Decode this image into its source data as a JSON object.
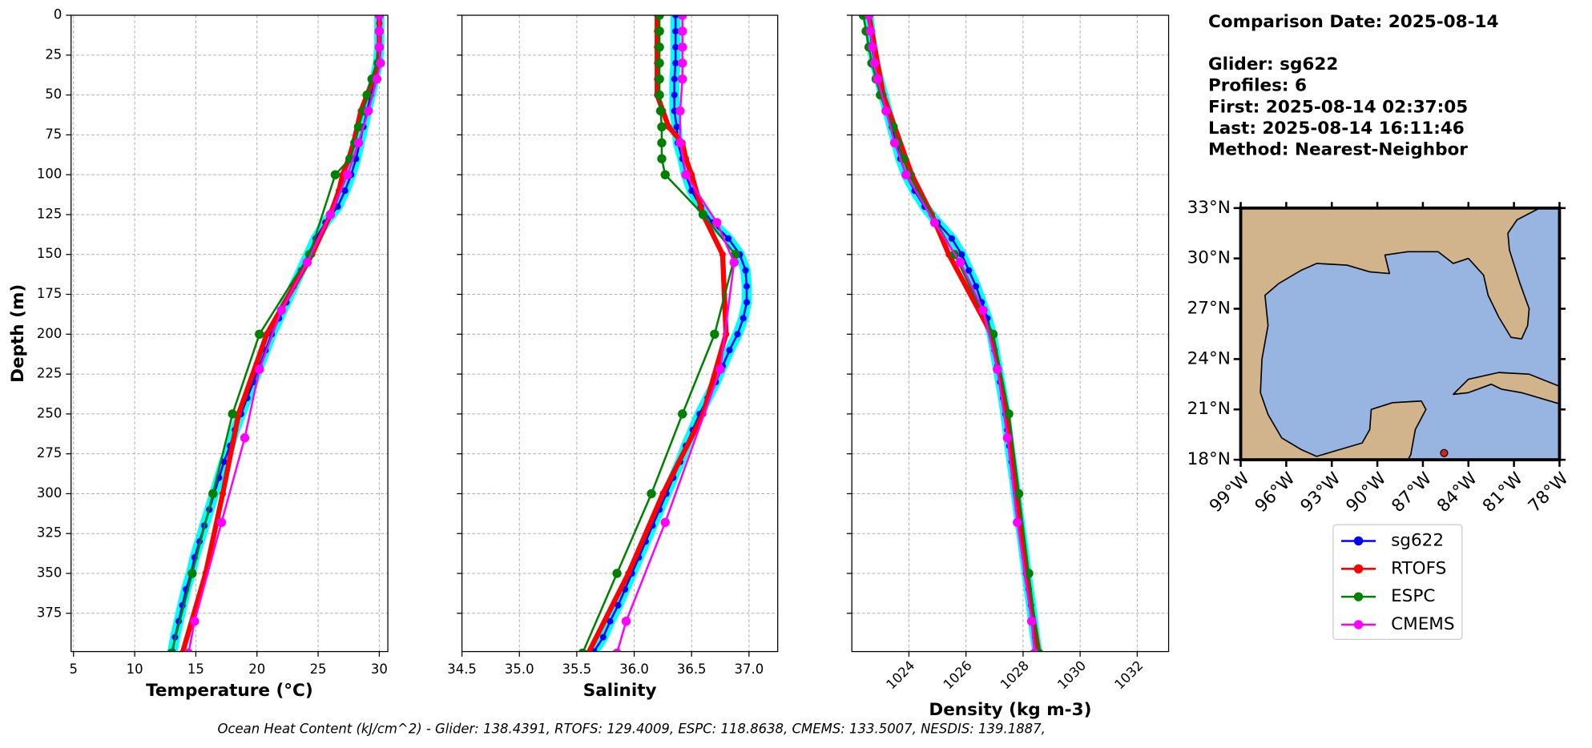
{
  "chart_data": [
    {
      "type": "profile",
      "xlabel": "Temperature (°C)",
      "ylabel": "Depth (m)",
      "xlim": [
        4.8,
        30.7
      ],
      "xticks": [
        5,
        10,
        15,
        20,
        25,
        30
      ],
      "ylim": [
        0,
        399
      ],
      "yticks": [
        0,
        25,
        50,
        75,
        100,
        125,
        150,
        175,
        200,
        225,
        250,
        275,
        300,
        325,
        350,
        375
      ],
      "grid": true,
      "series": [
        {
          "name": "sg622",
          "color": "#0000ff",
          "depth": [
            0,
            10,
            20,
            30,
            40,
            50,
            60,
            70,
            80,
            90,
            100,
            110,
            120,
            130,
            140,
            150,
            160,
            170,
            180,
            190,
            200,
            210,
            220,
            230,
            240,
            250,
            260,
            270,
            280,
            290,
            300,
            310,
            320,
            330,
            340,
            350,
            360,
            370,
            380,
            390,
            399
          ],
          "values": [
            30.0,
            30.0,
            30.0,
            29.9,
            29.6,
            29.3,
            29.0,
            28.7,
            28.4,
            28.1,
            27.7,
            27.2,
            26.6,
            25.6,
            24.8,
            24.2,
            23.6,
            23.0,
            22.4,
            21.8,
            21.2,
            20.7,
            20.2,
            19.7,
            19.2,
            18.7,
            18.2,
            17.8,
            17.3,
            16.9,
            16.5,
            16.1,
            15.7,
            15.3,
            14.9,
            14.6,
            14.2,
            13.9,
            13.6,
            13.3,
            13.1
          ]
        },
        {
          "name": "RTOFS",
          "color": "#ff0000",
          "depth": [
            0,
            5,
            10,
            20,
            30,
            40,
            50,
            60,
            70,
            80,
            90,
            100,
            110,
            125,
            150,
            200,
            250,
            300,
            350,
            400
          ],
          "values": [
            30.0,
            30.0,
            30.0,
            30.0,
            29.9,
            29.5,
            29.0,
            28.5,
            28.2,
            27.9,
            27.5,
            27.0,
            26.7,
            26.0,
            24.5,
            20.8,
            18.5,
            17.2,
            15.8,
            13.9
          ]
        },
        {
          "name": "ESPC",
          "color": "#008000",
          "depth": [
            0,
            10,
            20,
            30,
            40,
            50,
            60,
            70,
            80,
            90,
            100,
            150,
            200,
            250,
            300,
            350,
            400
          ],
          "values": [
            30.0,
            30.0,
            30.0,
            29.9,
            29.4,
            29.0,
            28.7,
            28.3,
            28.0,
            27.6,
            26.4,
            24.3,
            20.2,
            18.0,
            16.4,
            14.7,
            13.0
          ]
        },
        {
          "name": "CMEMS",
          "color": "#ff00ff",
          "depth": [
            0,
            10,
            20,
            30,
            40,
            60,
            80,
            100,
            125,
            155,
            185,
            222,
            265,
            318,
            380,
            400
          ],
          "values": [
            30.0,
            30.0,
            30.0,
            30.1,
            29.8,
            29.1,
            28.3,
            27.4,
            26.0,
            24.1,
            22.0,
            20.2,
            19.0,
            17.1,
            14.9,
            14.4
          ]
        }
      ]
    },
    {
      "type": "profile",
      "xlabel": "Salinity",
      "xlim": [
        34.5,
        37.25
      ],
      "xticks": [
        34.5,
        {
          "value": 35,
          "label": "35.0"
        },
        35.5,
        {
          "value": 36,
          "label": "36.0"
        },
        36.5,
        {
          "value": 37,
          "label": "37.0"
        }
      ],
      "ylim": [
        0,
        399
      ],
      "yticks": [
        0,
        25,
        50,
        75,
        100,
        125,
        150,
        175,
        200,
        225,
        250,
        275,
        300,
        325,
        350,
        375
      ],
      "grid": true,
      "series": [
        {
          "name": "sg622",
          "color": "#0000ff",
          "depth": [
            0,
            10,
            20,
            30,
            40,
            50,
            60,
            70,
            80,
            90,
            100,
            110,
            120,
            130,
            140,
            150,
            160,
            170,
            180,
            190,
            200,
            210,
            220,
            230,
            240,
            250,
            260,
            270,
            280,
            290,
            300,
            310,
            320,
            330,
            340,
            350,
            360,
            370,
            380,
            390,
            399
          ],
          "values": [
            36.36,
            36.36,
            36.36,
            36.36,
            36.35,
            36.35,
            36.35,
            36.37,
            36.38,
            36.42,
            36.45,
            36.5,
            36.58,
            36.68,
            36.82,
            36.92,
            36.97,
            36.98,
            36.98,
            36.95,
            36.9,
            36.83,
            36.77,
            36.71,
            36.64,
            36.57,
            36.51,
            36.45,
            36.4,
            36.34,
            36.28,
            36.22,
            36.16,
            36.1,
            36.04,
            35.98,
            35.92,
            35.86,
            35.79,
            35.73,
            35.65
          ]
        },
        {
          "name": "RTOFS",
          "color": "#ff0000",
          "depth": [
            0,
            10,
            20,
            30,
            40,
            50,
            60,
            70,
            80,
            90,
            100,
            125,
            150,
            200,
            250,
            300,
            350,
            400
          ],
          "values": [
            36.2,
            36.2,
            36.2,
            36.2,
            36.2,
            36.2,
            36.25,
            36.3,
            36.42,
            36.45,
            36.5,
            36.6,
            36.77,
            36.8,
            36.6,
            36.25,
            35.95,
            35.6
          ]
        },
        {
          "name": "ESPC",
          "color": "#008000",
          "depth": [
            0,
            10,
            20,
            30,
            40,
            50,
            60,
            70,
            80,
            90,
            100,
            125,
            150,
            200,
            250,
            300,
            350,
            400
          ],
          "values": [
            36.22,
            36.22,
            36.22,
            36.22,
            36.22,
            36.22,
            36.23,
            36.24,
            36.24,
            36.24,
            36.27,
            36.6,
            36.88,
            36.7,
            36.42,
            36.15,
            35.85,
            35.55
          ]
        },
        {
          "name": "CMEMS",
          "color": "#ff00ff",
          "depth": [
            0,
            10,
            20,
            30,
            40,
            60,
            80,
            100,
            130,
            155,
            222,
            318,
            380,
            400
          ],
          "values": [
            36.42,
            36.42,
            36.42,
            36.42,
            36.42,
            36.4,
            36.4,
            36.45,
            36.72,
            36.87,
            36.75,
            36.27,
            35.93,
            35.85
          ]
        }
      ]
    },
    {
      "type": "profile",
      "xlabel": "Density (kg m-3)",
      "xlim": [
        1022,
        1033.1
      ],
      "xticks": [
        1024,
        1026,
        1028,
        1030,
        1032
      ],
      "xtick_rotation": 45,
      "ylim": [
        0,
        399
      ],
      "yticks": [
        0,
        25,
        50,
        75,
        100,
        125,
        150,
        175,
        200,
        225,
        250,
        275,
        300,
        325,
        350,
        375
      ],
      "grid": true,
      "series": [
        {
          "name": "sg622",
          "color": "#0000ff",
          "depth": [
            0,
            10,
            20,
            30,
            40,
            50,
            60,
            70,
            80,
            90,
            100,
            110,
            120,
            130,
            140,
            150,
            160,
            170,
            180,
            190,
            200,
            210,
            220,
            230,
            240,
            250,
            260,
            270,
            280,
            290,
            300,
            310,
            320,
            330,
            340,
            350,
            360,
            370,
            380,
            390,
            399
          ],
          "values": [
            1022.58,
            1022.65,
            1022.7,
            1022.8,
            1022.95,
            1023.1,
            1023.25,
            1023.4,
            1023.55,
            1023.7,
            1023.9,
            1024.2,
            1024.55,
            1025.0,
            1025.5,
            1025.85,
            1026.1,
            1026.35,
            1026.55,
            1026.75,
            1026.9,
            1027.0,
            1027.1,
            1027.2,
            1027.3,
            1027.38,
            1027.45,
            1027.52,
            1027.6,
            1027.68,
            1027.75,
            1027.82,
            1027.9,
            1027.98,
            1028.05,
            1028.12,
            1028.2,
            1028.28,
            1028.35,
            1028.42,
            1028.5
          ]
        },
        {
          "name": "RTOFS",
          "color": "#ff0000",
          "depth": [
            0,
            50,
            100,
            125,
            150,
            200,
            250,
            300,
            350,
            400
          ],
          "values": [
            1022.6,
            1023.1,
            1024.1,
            1024.8,
            1025.4,
            1026.9,
            1027.45,
            1027.8,
            1028.1,
            1028.55
          ]
        },
        {
          "name": "ESPC",
          "color": "#008000",
          "depth": [
            0,
            10,
            20,
            30,
            40,
            50,
            60,
            70,
            80,
            90,
            100,
            150,
            200,
            250,
            300,
            350,
            400
          ],
          "values": [
            1022.4,
            1022.5,
            1022.6,
            1022.7,
            1022.85,
            1023.0,
            1023.2,
            1023.45,
            1023.6,
            1023.8,
            1024.0,
            1025.6,
            1026.95,
            1027.5,
            1027.85,
            1028.2,
            1028.55
          ]
        },
        {
          "name": "CMEMS",
          "color": "#ff00ff",
          "depth": [
            0,
            10,
            20,
            30,
            40,
            60,
            80,
            100,
            130,
            155,
            185,
            222,
            265,
            318,
            380,
            400
          ],
          "values": [
            1022.6,
            1022.65,
            1022.72,
            1022.8,
            1022.9,
            1023.2,
            1023.5,
            1023.9,
            1024.9,
            1025.8,
            1026.6,
            1027.1,
            1027.45,
            1027.8,
            1028.3,
            1028.4
          ]
        }
      ]
    }
  ],
  "info": {
    "title": "Comparison Date: 2025-08-14",
    "lines": [
      "Glider: sg622",
      "Profiles: 6",
      "First: 2025-08-14 02:37:05",
      "Last: 2025-08-14 16:11:46",
      "Method: Nearest-Neighbor"
    ]
  },
  "map": {
    "xlim": [
      -99,
      -78
    ],
    "ylim": [
      18,
      33
    ],
    "xticks": [
      {
        "value": -99,
        "label": "99°W"
      },
      {
        "value": -96,
        "label": "96°W"
      },
      {
        "value": -93,
        "label": "93°W"
      },
      {
        "value": -90,
        "label": "90°W"
      },
      {
        "value": -87,
        "label": "87°W"
      },
      {
        "value": -84,
        "label": "84°W"
      },
      {
        "value": -81,
        "label": "81°W"
      },
      {
        "value": -78,
        "label": "78°W"
      }
    ],
    "yticks": [
      {
        "value": 18,
        "label": "18°N"
      },
      {
        "value": 21,
        "label": "21°N"
      },
      {
        "value": 24,
        "label": "24°N"
      },
      {
        "value": 27,
        "label": "27°N"
      },
      {
        "value": 30,
        "label": "30°N"
      },
      {
        "value": 33,
        "label": "33°N"
      }
    ],
    "land_color": "#d2b48c",
    "ocean_color": "#98b4e0",
    "glider_position": {
      "lon": -85.6,
      "lat": 18.4
    },
    "marker_color": "#e02020"
  },
  "footer": "Ocean Heat Content (kJ/cm^2) - Glider: 138.4391,  RTOFS: 129.4009,  ESPC: 118.8638,  CMEMS: 133.5007,  NESDIS: 139.1887,"
}
